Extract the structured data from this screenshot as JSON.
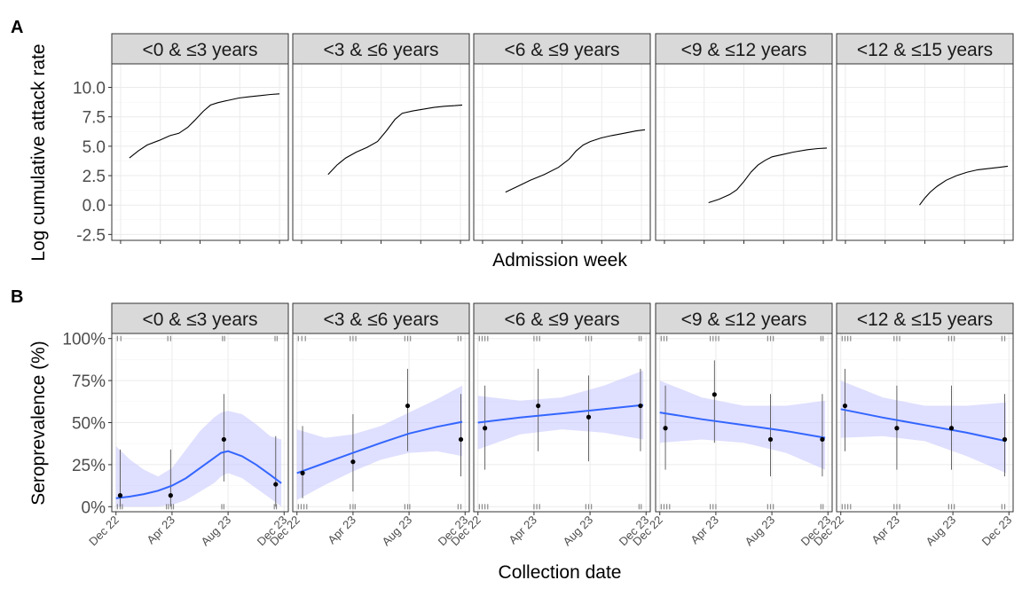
{
  "figure": {
    "panel_a_tag": "A",
    "panel_b_tag": "B"
  },
  "chart_data": [
    {
      "type": "line",
      "panel": "A",
      "xlabel": "Admission week",
      "ylabel": "Log cumulative attack rate",
      "ylim": [
        -3,
        12
      ],
      "yticks": [
        -2.5,
        0.0,
        2.5,
        5.0,
        7.5,
        10.0
      ],
      "ytick_labels": [
        "-2.5",
        "0.0",
        "2.5",
        "5.0",
        "7.5",
        "10.0"
      ],
      "xlim": [
        0,
        1
      ],
      "grid": true,
      "line_color": "#000000",
      "facets": [
        {
          "label": "<0 & ≤3 years",
          "x": [
            0.1,
            0.15,
            0.2,
            0.27,
            0.33,
            0.38,
            0.43,
            0.47,
            0.52,
            0.56,
            0.6,
            0.66,
            0.72,
            0.78,
            0.84,
            0.9,
            0.95
          ],
          "y": [
            4.0,
            4.6,
            5.1,
            5.5,
            5.9,
            6.1,
            6.6,
            7.2,
            8.0,
            8.5,
            8.7,
            8.9,
            9.1,
            9.2,
            9.3,
            9.4,
            9.45
          ]
        },
        {
          "label": "<3 & ≤6 years",
          "x": [
            0.2,
            0.25,
            0.3,
            0.36,
            0.42,
            0.48,
            0.53,
            0.58,
            0.62,
            0.68,
            0.74,
            0.8,
            0.86,
            0.92,
            0.96
          ],
          "y": [
            2.6,
            3.4,
            4.0,
            4.5,
            4.9,
            5.4,
            6.3,
            7.3,
            7.8,
            8.0,
            8.15,
            8.3,
            8.4,
            8.45,
            8.5
          ]
        },
        {
          "label": "<6 & ≤9 years",
          "x": [
            0.18,
            0.25,
            0.32,
            0.4,
            0.48,
            0.54,
            0.58,
            0.62,
            0.66,
            0.72,
            0.78,
            0.85,
            0.92,
            0.97
          ],
          "y": [
            1.1,
            1.6,
            2.1,
            2.6,
            3.2,
            3.9,
            4.6,
            5.1,
            5.4,
            5.7,
            5.9,
            6.1,
            6.3,
            6.4
          ]
        },
        {
          "label": "<9 & ≤12 years",
          "x": [
            0.3,
            0.36,
            0.42,
            0.46,
            0.5,
            0.54,
            0.58,
            0.62,
            0.66,
            0.72,
            0.78,
            0.86,
            0.92,
            0.97
          ],
          "y": [
            0.2,
            0.5,
            0.9,
            1.3,
            2.0,
            2.8,
            3.4,
            3.8,
            4.1,
            4.3,
            4.5,
            4.7,
            4.8,
            4.85
          ]
        },
        {
          "label": "<12 & ≤15 years",
          "x": [
            0.47,
            0.5,
            0.53,
            0.57,
            0.62,
            0.68,
            0.74,
            0.8,
            0.86,
            0.92,
            0.97
          ],
          "y": [
            0.0,
            0.6,
            1.1,
            1.6,
            2.1,
            2.5,
            2.8,
            3.0,
            3.1,
            3.2,
            3.3
          ]
        }
      ]
    },
    {
      "type": "scatter",
      "panel": "B",
      "xlabel": "Collection date",
      "ylabel": "Seroprevalence (%)",
      "ylim": [
        -3,
        103
      ],
      "yticks": [
        0,
        25,
        50,
        75,
        100
      ],
      "ytick_labels": [
        "0%",
        "25%",
        "50%",
        "75%",
        "100%"
      ],
      "xlim": [
        -0.3,
        12.3
      ],
      "xticks": [
        0,
        4,
        8,
        12
      ],
      "xtick_labels": [
        "Dec 22",
        "Apr 23",
        "Aug 23",
        "Dec 23"
      ],
      "grid": true,
      "fit_color": "#3366ff",
      "ribbon_color": "#c9c9ff",
      "point_color": "#000000",
      "rug_color": "#8a8a8a",
      "facets": [
        {
          "label": "<0 & ≤3 years",
          "points": [
            {
              "x": 0.3,
              "y": 6.7,
              "lo": 0,
              "hi": 34
            },
            {
              "x": 3.9,
              "y": 6.7,
              "lo": 0,
              "hi": 34
            },
            {
              "x": 7.7,
              "y": 40,
              "lo": 15,
              "hi": 67
            },
            {
              "x": 11.4,
              "y": 13.3,
              "lo": 0,
              "hi": 42
            }
          ],
          "fit": {
            "x": [
              0,
              1,
              2,
              3,
              4,
              5,
              6,
              7,
              7.5,
              8,
              9,
              10,
              11,
              11.8
            ],
            "y": [
              5,
              6,
              7.5,
              9.5,
              12.5,
              17,
              23,
              29,
              32,
              33,
              30,
              25,
              19,
              14
            ],
            "lo": [
              0,
              0,
              0,
              0,
              1,
              4,
              9,
              14,
              18,
              20,
              17,
              11,
              5,
              0
            ],
            "hi": [
              36,
              28,
              22,
              18,
              23,
              34,
              45,
              53,
              56,
              57,
              55,
              49,
              42,
              40
            ]
          },
          "rug_top": [
            0.1,
            0.35,
            3.7,
            3.9,
            7.6,
            7.75,
            11.35,
            11.5
          ],
          "rug_bottom": [
            0.1,
            0.3,
            0.45,
            3.6,
            3.75,
            3.95,
            4.1,
            7.55,
            7.7,
            11.3,
            11.45
          ]
        },
        {
          "label": "<3 & ≤6 years",
          "points": [
            {
              "x": 0.4,
              "y": 20,
              "lo": 5,
              "hi": 48
            },
            {
              "x": 4.0,
              "y": 26.7,
              "lo": 9,
              "hi": 55
            },
            {
              "x": 7.9,
              "y": 60,
              "lo": 33,
              "hi": 82
            },
            {
              "x": 11.7,
              "y": 40,
              "lo": 18,
              "hi": 67
            }
          ],
          "fit": {
            "x": [
              0,
              2,
              4,
              6,
              8,
              10,
              11.8
            ],
            "y": [
              20,
              26,
              32,
              38,
              43.5,
              47.5,
              50.5
            ],
            "lo": [
              4,
              13,
              21,
              28,
              32,
              33,
              30
            ],
            "hi": [
              46,
              41,
              43,
              48,
              56,
              64,
              72
            ]
          },
          "rug_top": [
            0.1,
            0.35,
            0.6,
            3.8,
            4.0,
            4.2,
            7.7,
            7.9,
            8.1,
            11.5,
            11.7
          ],
          "rug_bottom": [
            0.1,
            0.3,
            0.5,
            0.7,
            3.8,
            4.0,
            4.15,
            7.7,
            7.9,
            8.05,
            11.5,
            11.7
          ]
        },
        {
          "label": "<6 & ≤9 years",
          "points": [
            {
              "x": 0.5,
              "y": 46.7,
              "lo": 22,
              "hi": 72
            },
            {
              "x": 4.3,
              "y": 60,
              "lo": 33,
              "hi": 82
            },
            {
              "x": 7.9,
              "y": 53.3,
              "lo": 27,
              "hi": 78
            },
            {
              "x": 11.6,
              "y": 60,
              "lo": 33,
              "hi": 82
            }
          ],
          "fit": {
            "x": [
              0,
              3,
              6,
              9,
              11.8
            ],
            "y": [
              50,
              53,
              55.5,
              58,
              60.5
            ],
            "lo": [
              34,
              43,
              46,
              44,
              40
            ],
            "hi": [
              66,
              63,
              65,
              72,
              81
            ]
          },
          "rug_top": [
            0.1,
            0.3,
            0.5,
            0.7,
            4.0,
            4.2,
            4.4,
            7.7,
            7.9,
            8.1,
            11.5,
            11.65
          ],
          "rug_bottom": [
            0.1,
            0.3,
            0.5,
            0.7,
            4.0,
            4.2,
            4.4,
            7.7,
            7.9,
            8.1,
            11.5,
            11.65
          ]
        },
        {
          "label": "<9 & ≤12 years",
          "points": [
            {
              "x": 0.4,
              "y": 46.7,
              "lo": 22,
              "hi": 72
            },
            {
              "x": 3.9,
              "y": 66.7,
              "lo": 38,
              "hi": 87
            },
            {
              "x": 7.9,
              "y": 40,
              "lo": 18,
              "hi": 67
            },
            {
              "x": 11.6,
              "y": 40,
              "lo": 18,
              "hi": 67
            }
          ],
          "fit": {
            "x": [
              0,
              3,
              6,
              9,
              11.8
            ],
            "y": [
              56,
              52,
              48.5,
              45,
              41
            ],
            "lo": [
              38,
              40,
              38,
              32,
              22
            ],
            "hi": [
              75,
              65,
              60,
              60,
              63
            ]
          },
          "rug_top": [
            0.1,
            0.3,
            0.5,
            3.6,
            3.8,
            4.0,
            4.2,
            7.7,
            7.9,
            8.1,
            11.5,
            11.65
          ],
          "rug_bottom": [
            0.1,
            0.3,
            0.5,
            0.7,
            3.6,
            3.8,
            4.0,
            7.7,
            7.9,
            8.1,
            11.5,
            11.65
          ]
        },
        {
          "label": "<12 & ≤15 years",
          "points": [
            {
              "x": 0.3,
              "y": 60,
              "lo": 33,
              "hi": 82
            },
            {
              "x": 4.0,
              "y": 46.7,
              "lo": 22,
              "hi": 72
            },
            {
              "x": 7.9,
              "y": 46.7,
              "lo": 22,
              "hi": 72
            },
            {
              "x": 11.7,
              "y": 40,
              "lo": 18,
              "hi": 67
            }
          ],
          "fit": {
            "x": [
              0,
              3,
              6,
              9,
              11.8
            ],
            "y": [
              58,
              53,
              48.5,
              44,
              39
            ],
            "lo": [
              41,
              42,
              39,
              30,
              20
            ],
            "hi": [
              75,
              65,
              60,
              60,
              62
            ]
          },
          "rug_top": [
            0.1,
            0.3,
            0.5,
            0.7,
            3.8,
            4.0,
            4.2,
            7.7,
            7.9,
            8.1,
            11.5,
            11.7
          ],
          "rug_bottom": [
            0.1,
            0.3,
            0.5,
            0.7,
            3.8,
            4.0,
            4.2,
            7.7,
            7.9,
            8.1,
            11.5,
            11.7
          ]
        }
      ]
    }
  ]
}
